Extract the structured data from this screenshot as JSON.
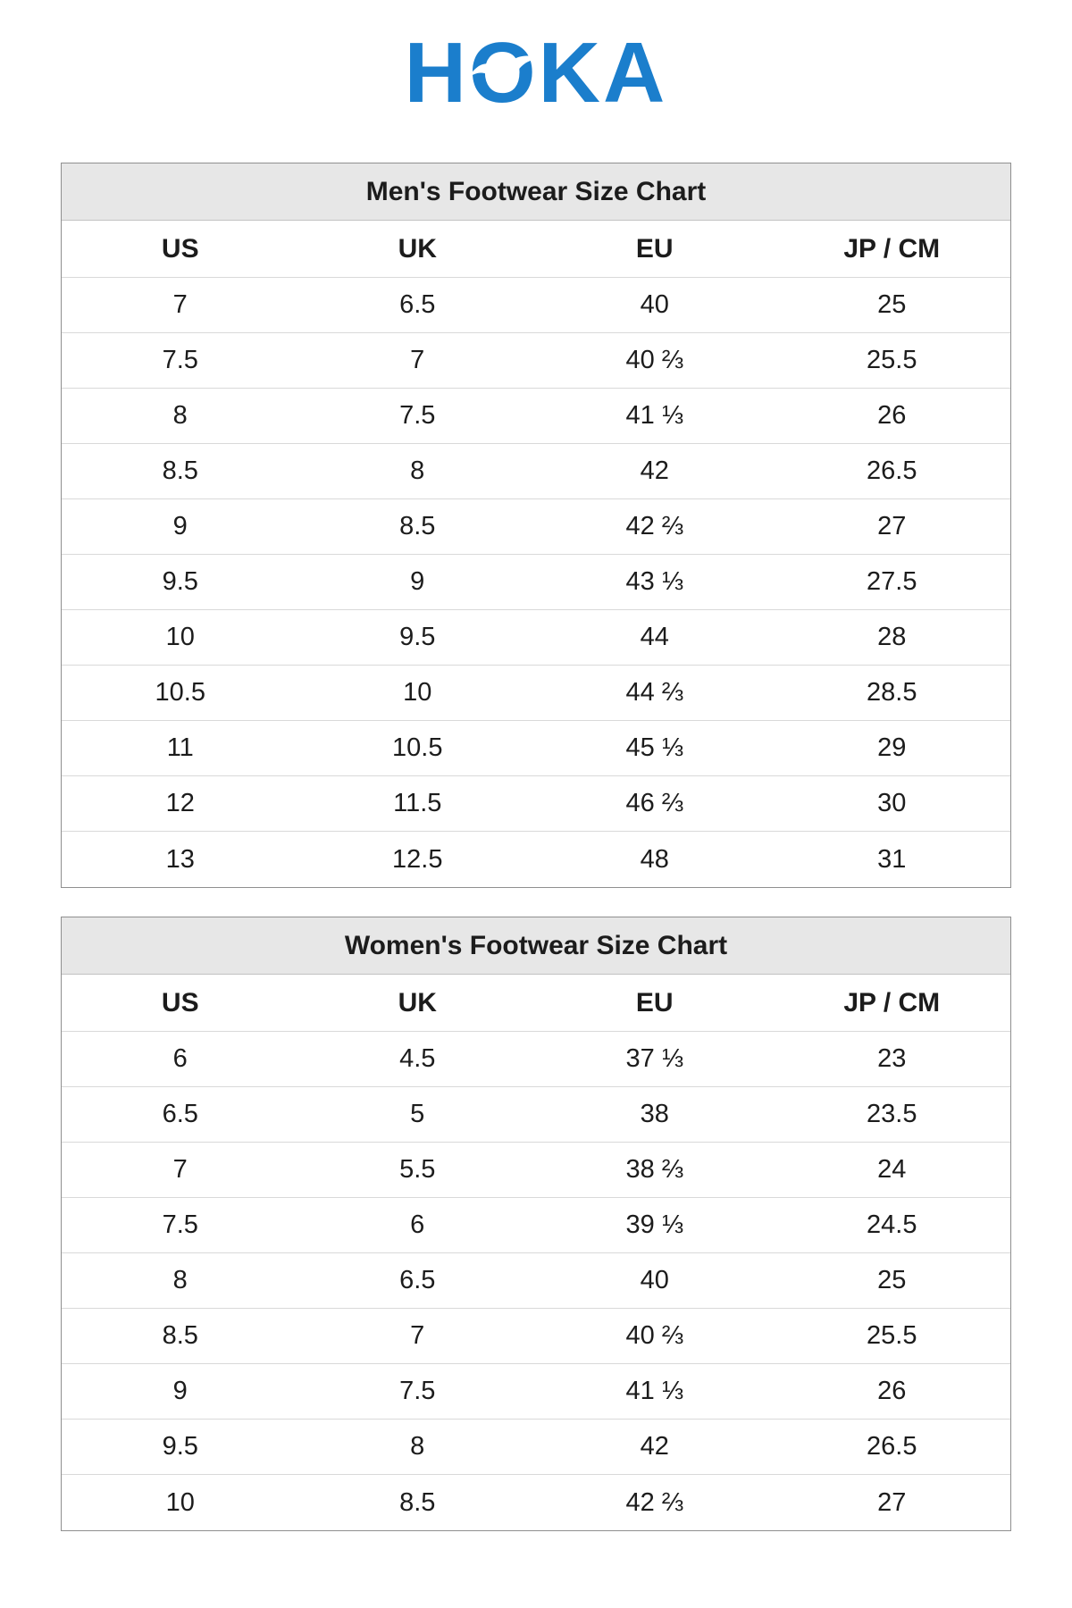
{
  "logo": {
    "text": "HOKA",
    "letters": [
      "H",
      "O",
      "K",
      "A"
    ],
    "color": "#1b7ecc",
    "bird_icon": "bird-in-flight"
  },
  "tables": [
    {
      "title": "Men's Footwear Size Chart",
      "columns": [
        "US",
        "UK",
        "EU",
        "JP / CM"
      ],
      "rows": [
        [
          "7",
          "6.5",
          "40",
          "25"
        ],
        [
          "7.5",
          "7",
          "40 ⅔",
          "25.5"
        ],
        [
          "8",
          "7.5",
          "41 ⅓",
          "26"
        ],
        [
          "8.5",
          "8",
          "42",
          "26.5"
        ],
        [
          "9",
          "8.5",
          "42 ⅔",
          "27"
        ],
        [
          "9.5",
          "9",
          "43 ⅓",
          "27.5"
        ],
        [
          "10",
          "9.5",
          "44",
          "28"
        ],
        [
          "10.5",
          "10",
          "44 ⅔",
          "28.5"
        ],
        [
          "11",
          "10.5",
          "45 ⅓",
          "29"
        ],
        [
          "12",
          "11.5",
          "46 ⅔",
          "30"
        ],
        [
          "13",
          "12.5",
          "48",
          "31"
        ]
      ]
    },
    {
      "title": "Women's Footwear Size Chart",
      "columns": [
        "US",
        "UK",
        "EU",
        "JP / CM"
      ],
      "rows": [
        [
          "6",
          "4.5",
          "37 ⅓",
          "23"
        ],
        [
          "6.5",
          "5",
          "38",
          "23.5"
        ],
        [
          "7",
          "5.5",
          "38 ⅔",
          "24"
        ],
        [
          "7.5",
          "6",
          "39 ⅓",
          "24.5"
        ],
        [
          "8",
          "6.5",
          "40",
          "25"
        ],
        [
          "8.5",
          "7",
          "40 ⅔",
          "25.5"
        ],
        [
          "9",
          "7.5",
          "41 ⅓",
          "26"
        ],
        [
          "9.5",
          "8",
          "42",
          "26.5"
        ],
        [
          "10",
          "8.5",
          "42 ⅔",
          "27"
        ]
      ]
    }
  ]
}
